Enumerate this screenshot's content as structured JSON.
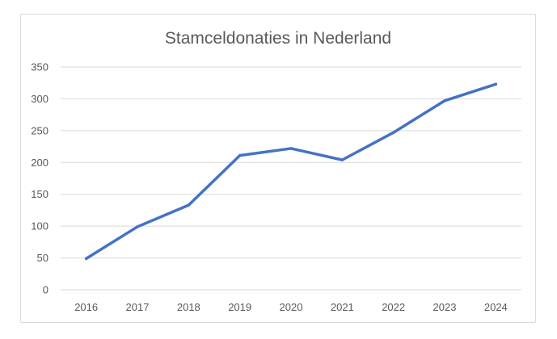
{
  "chart_data": {
    "type": "line",
    "title": "Stamceldonaties in Nederland",
    "xlabel": "",
    "ylabel": "",
    "categories": [
      "2016",
      "2017",
      "2018",
      "2019",
      "2020",
      "2021",
      "2022",
      "2023",
      "2024"
    ],
    "series": [
      {
        "name": "Stamceldonaties",
        "values": [
          49,
          99,
          133,
          211,
          222,
          204,
          247,
          297,
          323
        ],
        "color": "#4472c4"
      }
    ],
    "ylim": [
      0,
      350
    ],
    "yticks": [
      0,
      50,
      100,
      150,
      200,
      250,
      300,
      350
    ],
    "grid": true,
    "legend": "none"
  }
}
